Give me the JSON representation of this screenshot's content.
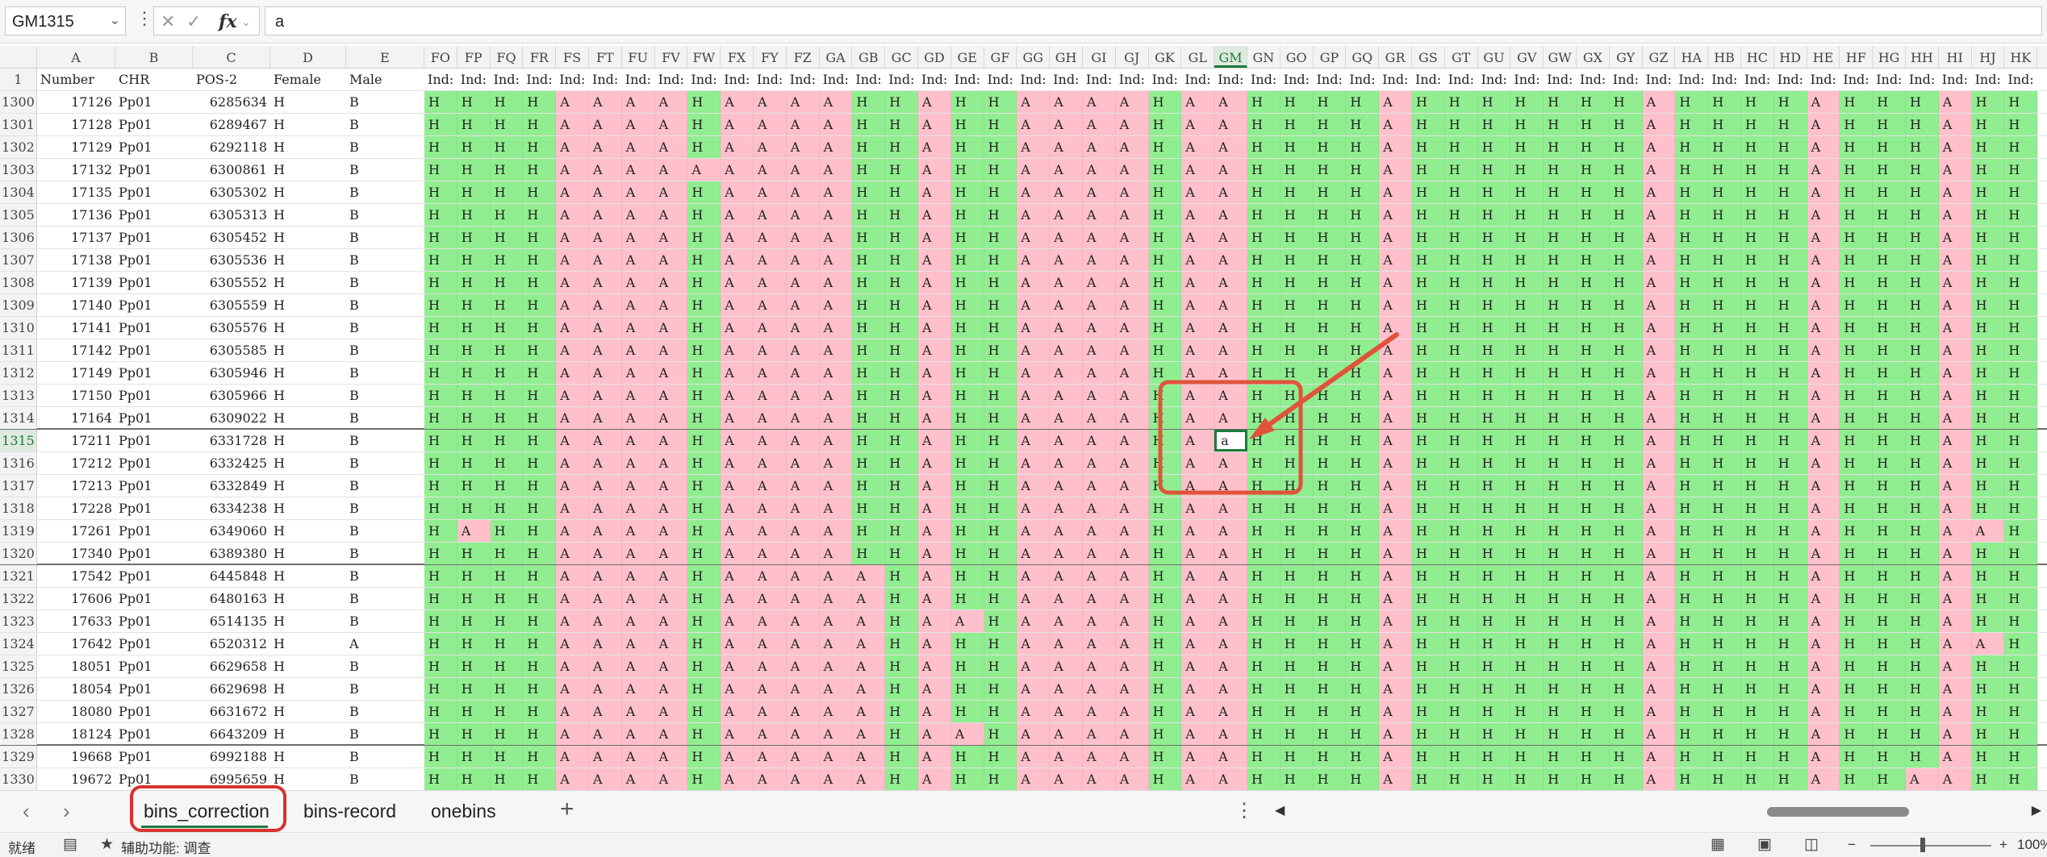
{
  "formula_bar": {
    "name_box": "GM1315",
    "menu_icon": "more-vertical-icon",
    "cancel_icon": "close-icon",
    "enter_icon": "check-icon",
    "fx_label": "fx",
    "content": "a"
  },
  "columns": {
    "meta": [
      "A",
      "B",
      "C",
      "D",
      "E"
    ],
    "geno": [
      "FO",
      "FP",
      "FQ",
      "FR",
      "FS",
      "FT",
      "FU",
      "FV",
      "FW",
      "FX",
      "FY",
      "FZ",
      "GA",
      "GB",
      "GC",
      "GD",
      "GE",
      "GF",
      "GG",
      "GH",
      "GI",
      "GJ",
      "GK",
      "GL",
      "GM",
      "GN",
      "GO",
      "GP",
      "GQ",
      "GR",
      "GS",
      "GT",
      "GU",
      "GV",
      "GW",
      "GX",
      "GY",
      "GZ",
      "HA",
      "HB",
      "HC",
      "HD",
      "HE",
      "HF",
      "HG",
      "HH",
      "HI",
      "HJ",
      "HK"
    ],
    "selected": "GM"
  },
  "header_row": {
    "number": "1",
    "a": "Number",
    "b": "CHR",
    "c": "POS-2",
    "d": "Female",
    "e": "Male",
    "ind": "Ind:"
  },
  "rows": [
    {
      "r": "1300",
      "a": "17126",
      "b": "Pp01",
      "c": "6285634",
      "d": "H",
      "e": "B",
      "g": "HHHHAAAAHAAAAHHAHHAAAAHAAHHHHAHHHHHHHAHHHHAHHHAHH"
    },
    {
      "r": "1301",
      "a": "17128",
      "b": "Pp01",
      "c": "6289467",
      "d": "H",
      "e": "B",
      "g": "HHHHAAAAHAAAAHHAHHAAAAHAAHHHHAHHHHHHHAHHHHAHHHAHH"
    },
    {
      "r": "1302",
      "a": "17129",
      "b": "Pp01",
      "c": "6292118",
      "d": "H",
      "e": "B",
      "g": "HHHHAAAAHAAAAHHAHHAAAAHAAHHHHAHHHHHHHAHHHHAHHHAHH"
    },
    {
      "r": "1303",
      "a": "17132",
      "b": "Pp01",
      "c": "6300861",
      "d": "H",
      "e": "B",
      "g": "HHHHAAAAAAAAAHHAHHAAAAHAAHHHHAHHHHHHHAHHHHAHHHAHH"
    },
    {
      "r": "1304",
      "a": "17135",
      "b": "Pp01",
      "c": "6305302",
      "d": "H",
      "e": "B",
      "g": "HHHHAAAAHAAAAHHAHHAAAAHAAHHHHAHHHHHHHAHHHHAHHHAHH"
    },
    {
      "r": "1305",
      "a": "17136",
      "b": "Pp01",
      "c": "6305313",
      "d": "H",
      "e": "B",
      "g": "HHHHAAAAHAAAAHHAHHAAAAHAAHHHHAHHHHHHHAHHHHAHHHAHH"
    },
    {
      "r": "1306",
      "a": "17137",
      "b": "Pp01",
      "c": "6305452",
      "d": "H",
      "e": "B",
      "g": "HHHHAAAAHAAAAHHAHHAAAAHAAHHHHAHHHHHHHAHHHHAHHHAHH"
    },
    {
      "r": "1307",
      "a": "17138",
      "b": "Pp01",
      "c": "6305536",
      "d": "H",
      "e": "B",
      "g": "HHHHAAAAHAAAAHHAHHAAAAHAAHHHHAHHHHHHHAHHHHAHHHAHH"
    },
    {
      "r": "1308",
      "a": "17139",
      "b": "Pp01",
      "c": "6305552",
      "d": "H",
      "e": "B",
      "g": "HHHHAAAAHAAAAHHAHHAAAAHAAHHHHAHHHHHHHAHHHHAHHHAHH"
    },
    {
      "r": "1309",
      "a": "17140",
      "b": "Pp01",
      "c": "6305559",
      "d": "H",
      "e": "B",
      "g": "HHHHAAAAHAAAAHHAHHAAAAHAAHHHHAHHHHHHHAHHHHAHHHAHH"
    },
    {
      "r": "1310",
      "a": "17141",
      "b": "Pp01",
      "c": "6305576",
      "d": "H",
      "e": "B",
      "g": "HHHHAAAAHAAAAHHAHHAAAAHAAHHHHAHHHHHHHAHHHHAHHHAHH"
    },
    {
      "r": "1311",
      "a": "17142",
      "b": "Pp01",
      "c": "6305585",
      "d": "H",
      "e": "B",
      "g": "HHHHAAAAHAAAAHHAHHAAAAHAAHHHHAHHHHHHHAHHHHAHHHAHH"
    },
    {
      "r": "1312",
      "a": "17149",
      "b": "Pp01",
      "c": "6305946",
      "d": "H",
      "e": "B",
      "g": "HHHHAAAAHAAAAHHAHHAAAAHAAHHHHAHHHHHHHAHHHHAHHHAHH"
    },
    {
      "r": "1313",
      "a": "17150",
      "b": "Pp01",
      "c": "6305966",
      "d": "H",
      "e": "B",
      "g": "HHHHAAAAHAAAAHHAHHAAAAHAAHHHHAHHHHHHHAHHHHAHHHAHH"
    },
    {
      "r": "1314",
      "a": "17164",
      "b": "Pp01",
      "c": "6309022",
      "d": "H",
      "e": "B",
      "g": "HHHHAAAAHAAAAHHAHHAAAAHAAHHHHAHHHHHHHAHHHHAHHHAHH"
    },
    {
      "r": "1315",
      "a": "17211",
      "b": "Pp01",
      "c": "6331728",
      "d": "H",
      "e": "B",
      "g": "HHHHAAAAHAAAAHHAHHAAAAHAaHHHHAHHHHHHHAHHHHAHHHAHH"
    },
    {
      "r": "1316",
      "a": "17212",
      "b": "Pp01",
      "c": "6332425",
      "d": "H",
      "e": "B",
      "g": "HHHHAAAAHAAAAHHAHHAAAAHAAHHHHAHHHHHHHAHHHHAHHHAHH"
    },
    {
      "r": "1317",
      "a": "17213",
      "b": "Pp01",
      "c": "6332849",
      "d": "H",
      "e": "B",
      "g": "HHHHAAAAHAAAAHHAHHAAAAHAAHHHHAHHHHHHHAHHHHAHHHAHH"
    },
    {
      "r": "1318",
      "a": "17228",
      "b": "Pp01",
      "c": "6334238",
      "d": "H",
      "e": "B",
      "g": "HHHHAAAAHAAAAHHAHHAAAAHAAHHHHAHHHHHHHAHHHHAHHHAHH"
    },
    {
      "r": "1319",
      "a": "17261",
      "b": "Pp01",
      "c": "6349060",
      "d": "H",
      "e": "B",
      "g": "HAHHAAAAHAAAAHHAHHAAAAHAAHHHHAHHHHHHHAHHHHAHHHAAH"
    },
    {
      "r": "1320",
      "a": "17340",
      "b": "Pp01",
      "c": "6389380",
      "d": "H",
      "e": "B",
      "g": "HHHHAAAAHAAAAHHAHHAAAAHAAHHHHAHHHHHHHAHHHHAHHHAHH"
    },
    {
      "r": "1321",
      "a": "17542",
      "b": "Pp01",
      "c": "6445848",
      "d": "H",
      "e": "B",
      "g": "HHHHAAAAHAAAAAHAHHAAAAHAAHHHHAHHHHHHHAHHHHAHHHAHH"
    },
    {
      "r": "1322",
      "a": "17606",
      "b": "Pp01",
      "c": "6480163",
      "d": "H",
      "e": "B",
      "g": "HHHHAAAAHAAAAAHAHHAAAAHAAHHHHAHHHHHHHAHHHHAHHHAHH"
    },
    {
      "r": "1323",
      "a": "17633",
      "b": "Pp01",
      "c": "6514135",
      "d": "H",
      "e": "B",
      "g": "HHHHAAAAHAAAAAHAAHAAAAHAAHHHHAHHHHHHHAHHHHAHHHAHH"
    },
    {
      "r": "1324",
      "a": "17642",
      "b": "Pp01",
      "c": "6520312",
      "d": "H",
      "e": "A",
      "g": "HHHHAAAAHAAAAAHAHHAAAAHAAHHHHAHHHHHHHAHHHHAHHHAAH"
    },
    {
      "r": "1325",
      "a": "18051",
      "b": "Pp01",
      "c": "6629658",
      "d": "H",
      "e": "B",
      "g": "HHHHAAAAHAAAAAHAHHAAAAHAAHHHHAHHHHHHHAHHHHAHHHAHH"
    },
    {
      "r": "1326",
      "a": "18054",
      "b": "Pp01",
      "c": "6629698",
      "d": "H",
      "e": "B",
      "g": "HHHHAAAAHAAAAAHAHHAAAAHAAHHHHAHHHHHHHAHHHHAHHHAHH"
    },
    {
      "r": "1327",
      "a": "18080",
      "b": "Pp01",
      "c": "6631672",
      "d": "H",
      "e": "B",
      "g": "HHHHAAAAHAAAAAHAHHAAAAHAAHHHHAHHHHHHHAHHHHAHHHAHH"
    },
    {
      "r": "1328",
      "a": "18124",
      "b": "Pp01",
      "c": "6643209",
      "d": "H",
      "e": "B",
      "g": "HHHHAAAAHAAAAAHAAHAAAAHAAHHHHAHHHHHHHAHHHHAHHHAHH"
    },
    {
      "r": "1329",
      "a": "19668",
      "b": "Pp01",
      "c": "6992188",
      "d": "H",
      "e": "B",
      "g": "HHHHAAAAHAAAAAHAHHAAAAHAAHHHHAHHHHHHHAHHHHAHHHAHH"
    },
    {
      "r": "1330",
      "a": "19672",
      "b": "Pp01",
      "c": "6995659",
      "d": "H",
      "e": "B",
      "g": "HHHHAAAAHAAAAAHAHHAAAAHAAHHHHAHHHHHHHAHHHHAHHAAHH"
    }
  ],
  "active_cell": {
    "ref": "GM1315",
    "value": "a"
  },
  "colors": {
    "h_fill": "#90ee90",
    "a_fill": "#ffc0cb",
    "annotation": "#e0533a",
    "highlight_box": "#d9534f",
    "accent": "#1e7a3c"
  },
  "sheet_tabs": [
    "bins_correction",
    "bins-record",
    "onebins"
  ],
  "active_tab": "bins_correction",
  "status": {
    "ready": "就绪",
    "accessibility": "辅助功能: 调查",
    "zoom": "100%"
  }
}
